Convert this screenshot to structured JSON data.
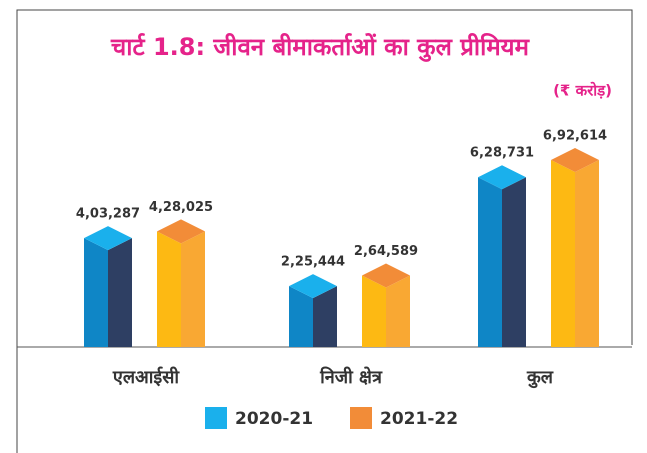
{
  "chart_data": {
    "type": "bar3d",
    "title": "चार्ट 1.8: जीवन बीमाकर्ताओं का कुल प्रीमियम",
    "subtitle": "(₹ करोड़)",
    "categories": [
      "एलआईसी",
      "निजी क्षेत्र",
      "कुल"
    ],
    "series": [
      {
        "name": "2020-21",
        "color": "#1ab0ec",
        "values": [
          403287,
          225444,
          628731
        ],
        "value_labels": [
          "4,03,287",
          "2,25,444",
          "6,28,731"
        ]
      },
      {
        "name": "2021-22",
        "color": "#f28c38",
        "values": [
          428025,
          264589,
          692614
        ],
        "value_labels": [
          "4,28,025",
          "2,64,589",
          "6,92,614"
        ]
      }
    ],
    "legend": "bottom"
  }
}
